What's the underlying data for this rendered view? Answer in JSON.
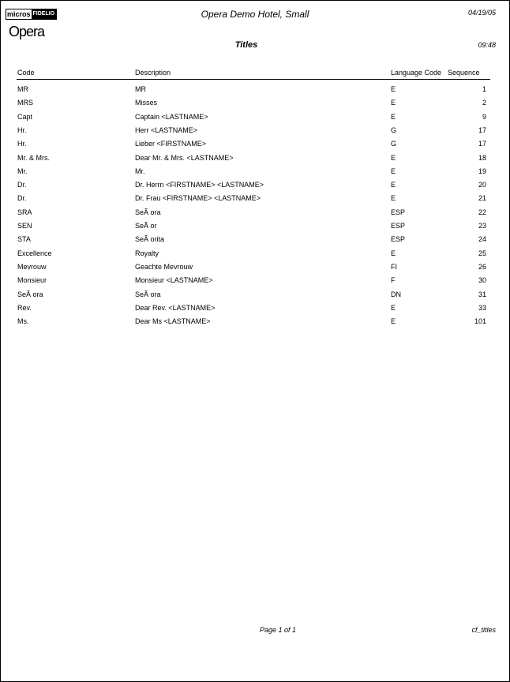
{
  "header": {
    "logo_micros": "micros",
    "logo_fidelio": "FIDELIO",
    "logo_opera": "Opera",
    "hotel": "Opera Demo Hotel, Small",
    "date": "04/19/05",
    "title": "Titles",
    "time": "09:48"
  },
  "columns": {
    "code": "Code",
    "description": "Description",
    "language": "Language Code",
    "sequence": "Sequence"
  },
  "rows": [
    {
      "code": "MR",
      "description": "MR",
      "language": "E",
      "sequence": "1"
    },
    {
      "code": "MRS",
      "description": "Misses",
      "language": "E",
      "sequence": "2"
    },
    {
      "code": "Capt",
      "description": "Captain <LASTNAME>",
      "language": "E",
      "sequence": "9"
    },
    {
      "code": "Hr.",
      "description": "Herr <LASTNAME>",
      "language": "G",
      "sequence": "17"
    },
    {
      "code": "Hr.",
      "description": "Lieber <FIRSTNAME>",
      "language": "G",
      "sequence": "17"
    },
    {
      "code": "Mr. & Mrs.",
      "description": "Dear Mr. & Mrs. <LASTNAME>",
      "language": "E",
      "sequence": "18"
    },
    {
      "code": "Mr.",
      "description": "Mr.",
      "language": "E",
      "sequence": "19"
    },
    {
      "code": "Dr.",
      "description": "Dr. Herrn <FIRSTNAME> <LASTNAME>",
      "language": "E",
      "sequence": "20"
    },
    {
      "code": "Dr.",
      "description": "Dr. Frau <FIRSTNAME> <LASTNAME>",
      "language": "E",
      "sequence": "21"
    },
    {
      "code": "SRA",
      "description": "SeÃ ora",
      "language": "ESP",
      "sequence": "22"
    },
    {
      "code": "SEN",
      "description": "SeÃ or",
      "language": "ESP",
      "sequence": "23"
    },
    {
      "code": "STA",
      "description": "SeÃ orita",
      "language": "ESP",
      "sequence": "24"
    },
    {
      "code": "Excellence",
      "description": "Royalty",
      "language": "E",
      "sequence": "25"
    },
    {
      "code": "Mevrouw",
      "description": "Geachte Mevrouw",
      "language": "FI",
      "sequence": "26"
    },
    {
      "code": "Monsieur",
      "description": "Monsieur <LASTNAME>",
      "language": "F",
      "sequence": "30"
    },
    {
      "code": "SeÃ ora",
      "description": "SeÃ ora",
      "language": "DN",
      "sequence": "31"
    },
    {
      "code": "Rev.",
      "description": "Dear Rev. <LASTNAME>",
      "language": "E",
      "sequence": "33"
    },
    {
      "code": "Ms.",
      "description": "Dear Ms <LASTNAME>",
      "language": "E",
      "sequence": "101"
    }
  ],
  "footer": {
    "page": "Page 1 of 1",
    "report": "cf_titles"
  }
}
